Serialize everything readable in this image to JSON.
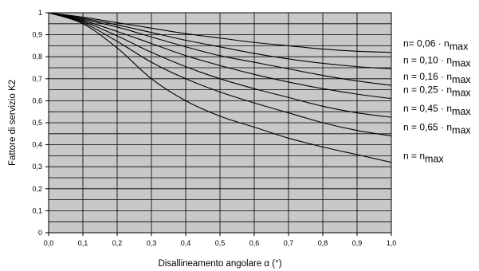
{
  "chart_data": {
    "type": "line",
    "title": "",
    "xlabel": "Disallineamento angolare α (°)",
    "ylabel": "Fattore di servizio K2",
    "xlim": [
      0,
      1
    ],
    "ylim": [
      0,
      1
    ],
    "x_ticks": [
      "0,0",
      "0,1",
      "0,2",
      "0,3",
      "0,4",
      "0,5",
      "0,6",
      "0,7",
      "0,8",
      "0,9",
      "1,0"
    ],
    "y_ticks": [
      "0",
      "0,1",
      "0,2",
      "0,3",
      "0,4",
      "0,5",
      "0,6",
      "0,7",
      "0,8",
      "0,9",
      "1"
    ],
    "grid": true,
    "background_color": "#c8c8c8",
    "line_color": "#000000",
    "x": [
      0,
      0.1,
      0.2,
      0.3,
      0.4,
      0.5,
      0.6,
      0.7,
      0.8,
      0.9,
      1.0
    ],
    "series": [
      {
        "name": "n= 0,06 · n",
        "sub": "max",
        "values": [
          1.0,
          0.98,
          0.955,
          0.93,
          0.905,
          0.885,
          0.865,
          0.85,
          0.835,
          0.825,
          0.82
        ]
      },
      {
        "name": "n = 0,10 · n",
        "sub": "max",
        "values": [
          1.0,
          0.975,
          0.945,
          0.91,
          0.875,
          0.845,
          0.815,
          0.79,
          0.77,
          0.755,
          0.745
        ]
      },
      {
        "name": "n = 0,16 · n",
        "sub": "max",
        "values": [
          1.0,
          0.97,
          0.935,
          0.89,
          0.845,
          0.805,
          0.775,
          0.745,
          0.715,
          0.69,
          0.67
        ]
      },
      {
        "name": "n = 0,25 · n",
        "sub": "max",
        "values": [
          1.0,
          0.965,
          0.915,
          0.86,
          0.805,
          0.76,
          0.72,
          0.685,
          0.655,
          0.63,
          0.61
        ]
      },
      {
        "name": "n = 0,45 · n",
        "sub": "max",
        "values": [
          1.0,
          0.96,
          0.895,
          0.82,
          0.755,
          0.7,
          0.655,
          0.615,
          0.575,
          0.545,
          0.525
        ]
      },
      {
        "name": "n = 0,65 · n",
        "sub": "max",
        "values": [
          1.0,
          0.955,
          0.87,
          0.775,
          0.7,
          0.64,
          0.59,
          0.545,
          0.5,
          0.465,
          0.44
        ]
      },
      {
        "name": "n = n",
        "sub": "max",
        "values": [
          1.0,
          0.95,
          0.84,
          0.7,
          0.6,
          0.53,
          0.48,
          0.43,
          0.39,
          0.355,
          0.32
        ]
      }
    ]
  }
}
